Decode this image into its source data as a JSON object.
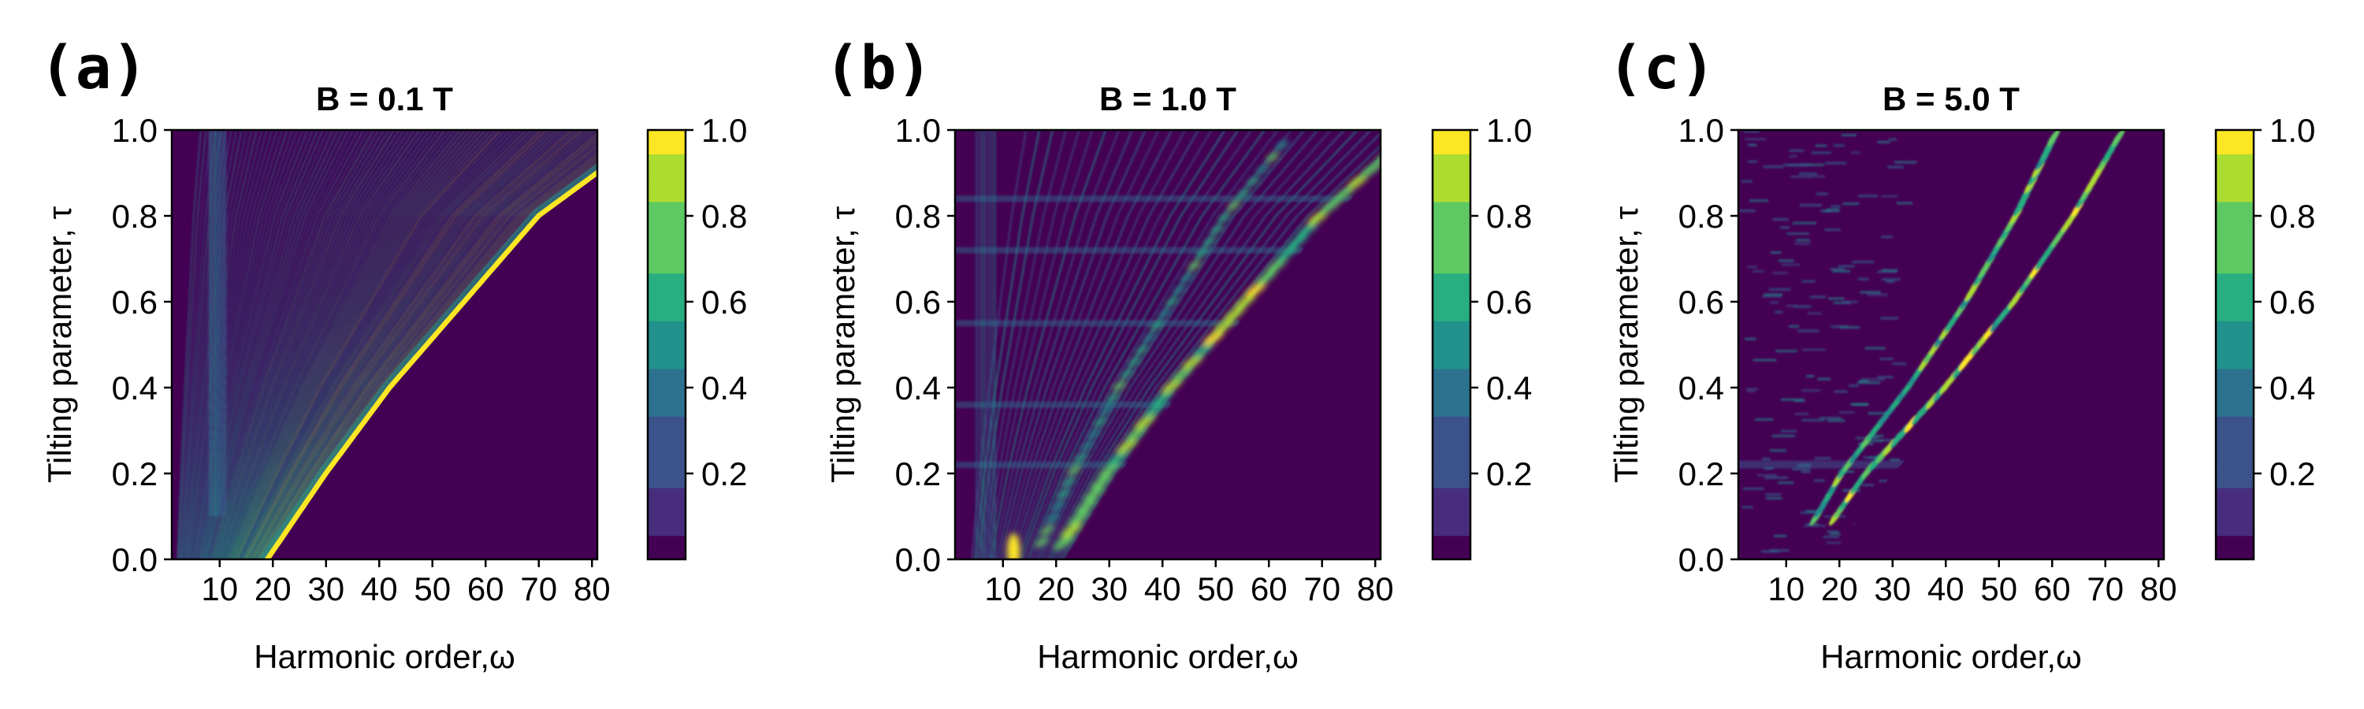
{
  "figure": {
    "panels": [
      {
        "letter": "(a)",
        "title": "B = 0.1 T"
      },
      {
        "letter": "(b)",
        "title": "B = 1.0 T"
      },
      {
        "letter": "(c)",
        "title": "B = 5.0 T"
      }
    ],
    "xlabel": "Harmonic order,ω",
    "ylabel": "Tilting parameter, τ",
    "colormap": [
      "#440154",
      "#472d7b",
      "#3b528b",
      "#2c728e",
      "#21918c",
      "#28ae80",
      "#5ec962",
      "#addc30",
      "#fde725"
    ]
  },
  "chart_data": [
    {
      "type": "heatmap",
      "title": "B = 0.1 T",
      "xlabel": "Harmonic order,ω",
      "ylabel": "Tilting parameter, τ",
      "xlim": [
        1,
        81
      ],
      "ylim": [
        0.0,
        1.0
      ],
      "xticks": [
        10,
        20,
        30,
        40,
        50,
        60,
        70,
        80
      ],
      "yticks": [
        0.0,
        0.2,
        0.4,
        0.6,
        0.8,
        1.0
      ],
      "colorbar": {
        "ticks": [
          0.2,
          0.4,
          0.6,
          0.8,
          1.0
        ],
        "range": [
          0,
          1.0
        ]
      },
      "cutoff": {
        "tau": [
          0.0,
          0.2,
          0.4,
          0.6,
          0.8,
          0.9
        ],
        "omega": [
          19,
          30,
          42,
          56,
          70,
          81
        ]
      },
      "features": "bright narrow yellow ridge along the cutoff; dense weak oblique fringes below the cutoff; vertical band near ω≈10"
    },
    {
      "type": "heatmap",
      "title": "B = 1.0 T",
      "xlabel": "Harmonic order,ω",
      "ylabel": "Tilting parameter, τ",
      "xlim": [
        1,
        81
      ],
      "ylim": [
        0.0,
        1.0
      ],
      "xticks": [
        10,
        20,
        30,
        40,
        50,
        60,
        70,
        80
      ],
      "yticks": [
        0.0,
        0.2,
        0.4,
        0.6,
        0.8,
        1.0
      ],
      "colorbar": {
        "ticks": [
          0.2,
          0.4,
          0.6,
          0.8,
          1.0
        ],
        "range": [
          0,
          1.0
        ]
      },
      "cutoff": {
        "tau": [
          0.0,
          0.2,
          0.4,
          0.6,
          0.8,
          0.9
        ],
        "omega": [
          22,
          32,
          44,
          58,
          72,
          81
        ]
      },
      "features": "blobby green/yellow maxima along the cutoff; step-like horizontal bands at τ≈0.22, 0.36, 0.55, 0.72, 0.84; peak near ω≈12, τ≈0.02"
    },
    {
      "type": "heatmap",
      "title": "B = 5.0 T",
      "xlabel": "Harmonic order,ω",
      "ylabel": "Tilting parameter, τ",
      "xlim": [
        1,
        81
      ],
      "ylim": [
        0.0,
        1.0
      ],
      "xticks": [
        10,
        20,
        30,
        40,
        50,
        60,
        70,
        80
      ],
      "yticks": [
        0.0,
        0.2,
        0.4,
        0.6,
        0.8,
        1.0
      ],
      "colorbar": {
        "ticks": [
          0.2,
          0.4,
          0.6,
          0.8,
          1.0
        ],
        "range": [
          0,
          1.0
        ]
      },
      "cutoff": {
        "tau": [
          0.0,
          0.2,
          0.4,
          0.6,
          0.8,
          1.0
        ],
        "omega": [
          18,
          30,
          46,
          60,
          72,
          82
        ]
      },
      "features": "two parallel diagonal bands of yellow/green striated maxima ending near ω≈77, τ≈1.0; horizontal band at τ≈0.22; weak diffuse signal for ω<25"
    }
  ]
}
